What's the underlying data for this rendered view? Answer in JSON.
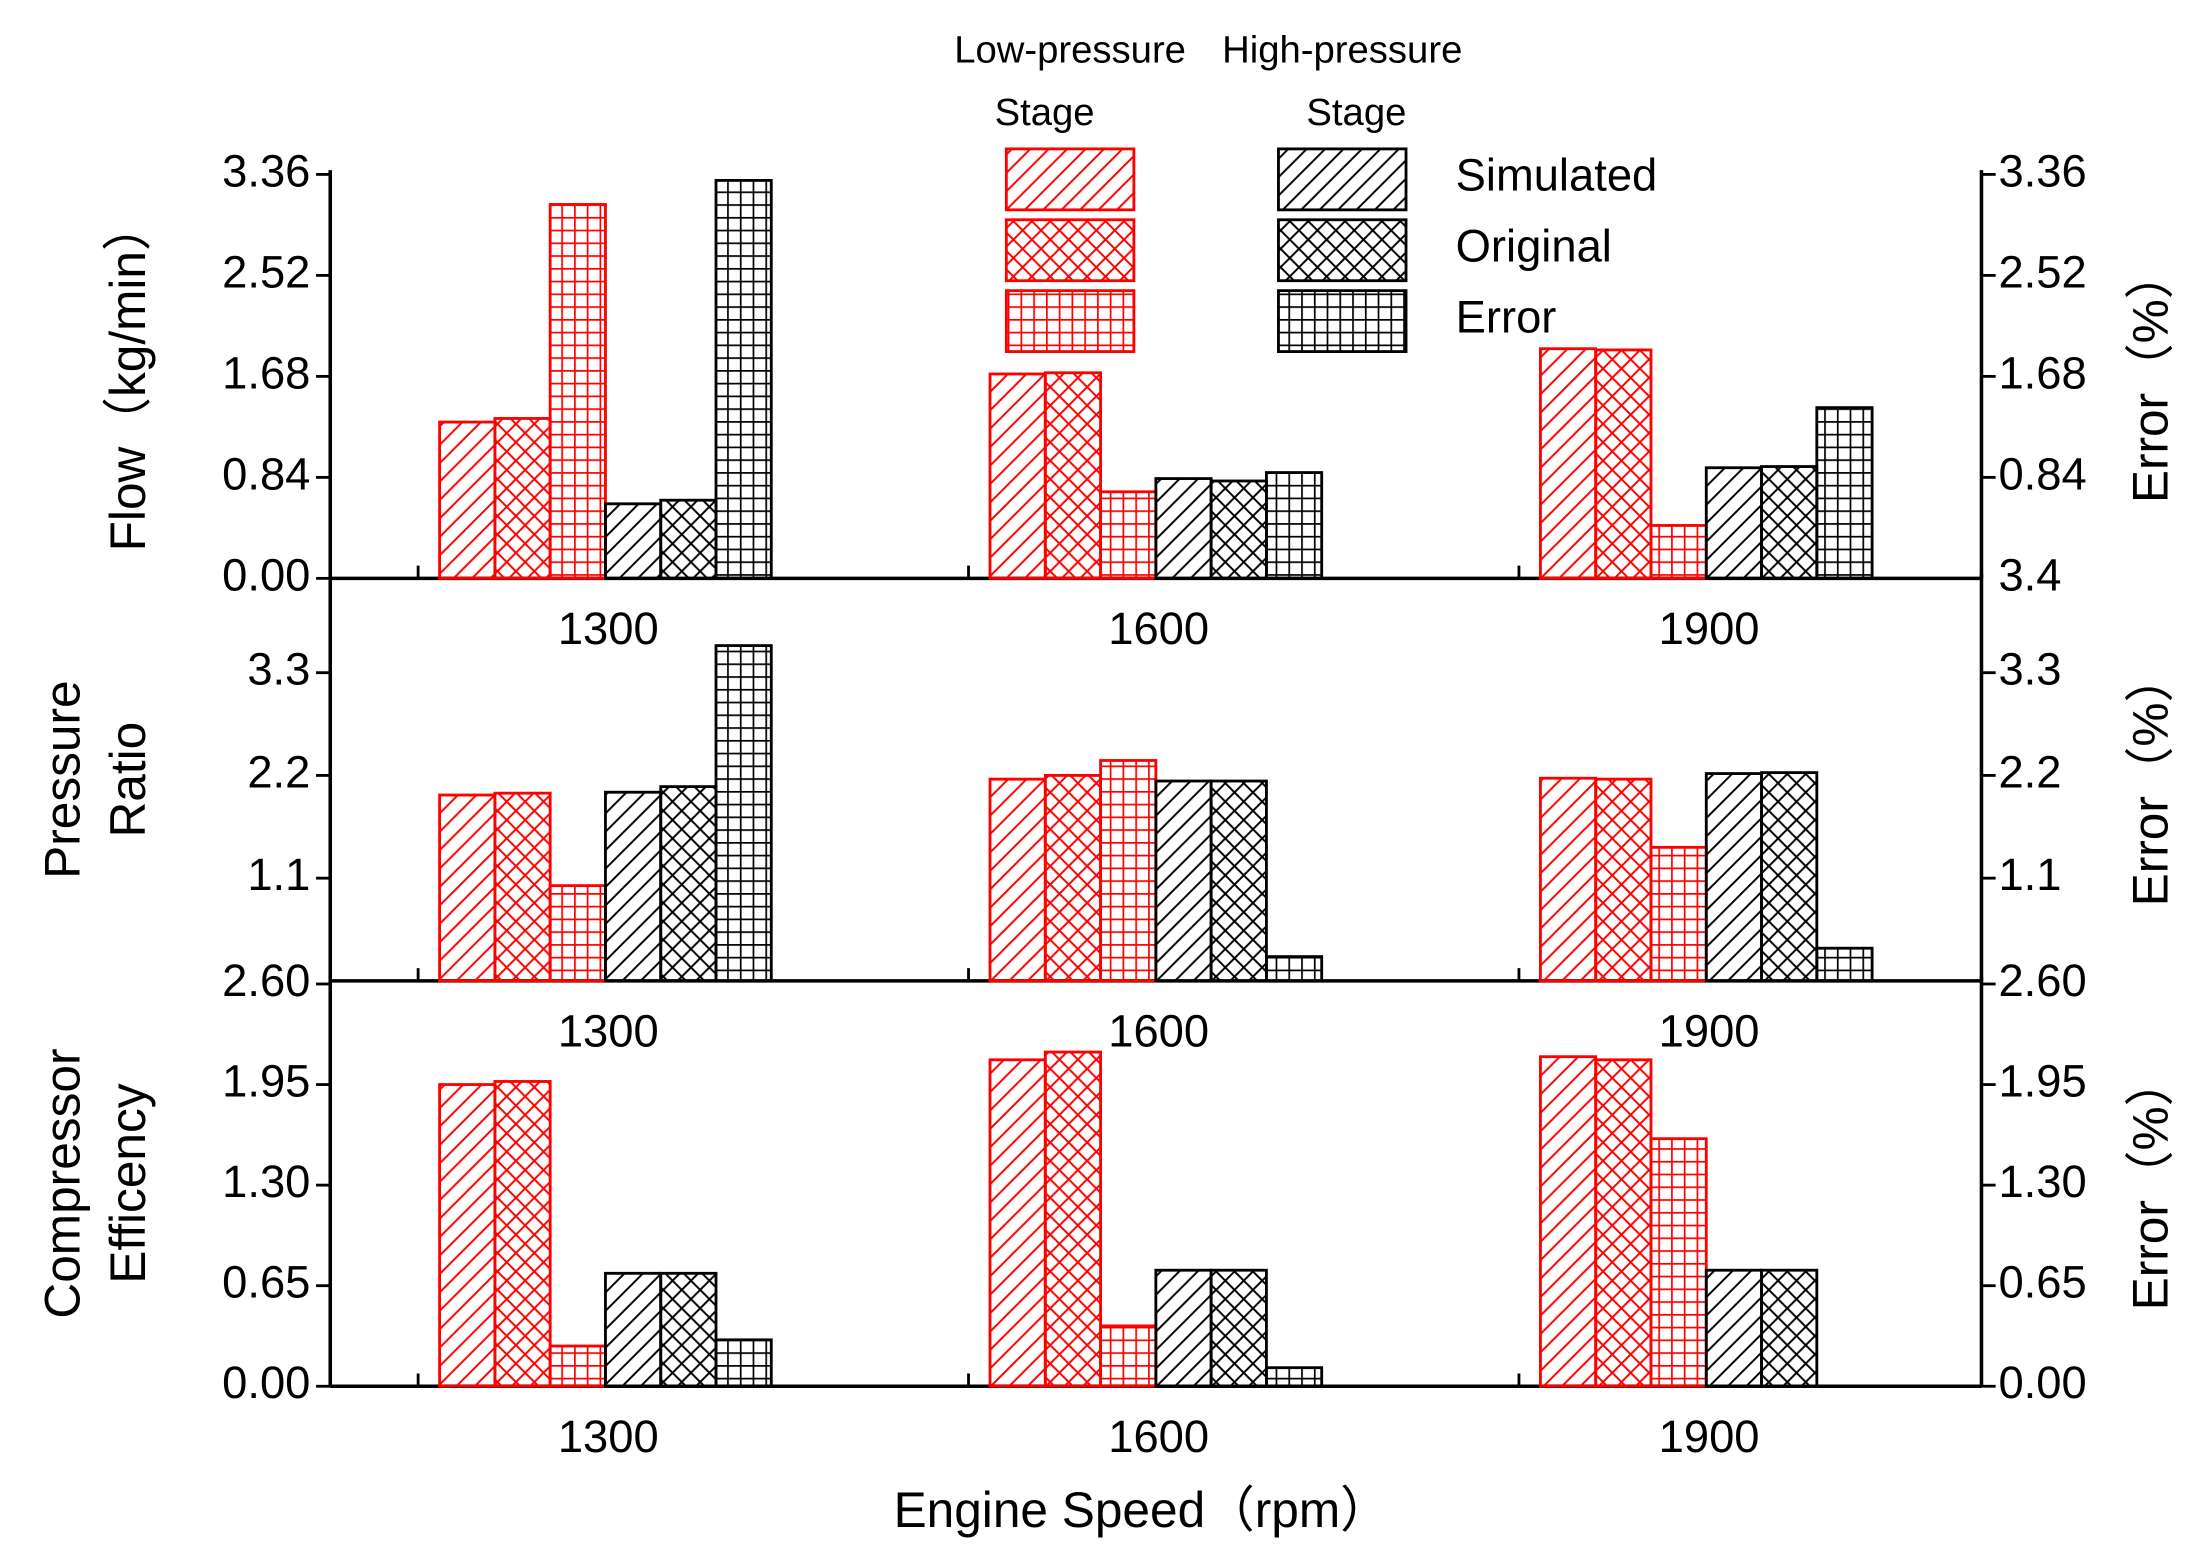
{
  "legend_groups": [
    [
      "Low-pressure",
      "Stage"
    ],
    [
      "High-pressure",
      "Stage"
    ]
  ],
  "chart_data": [
    {
      "type": "bar",
      "ylabel": [
        "Flow（kg/min）"
      ],
      "y2label": "Error（%）",
      "categories": [
        "1300",
        "1600",
        "1900"
      ],
      "ylim": [
        0,
        3.36
      ],
      "yticks": [
        {
          "value": 0,
          "label": "0.00"
        },
        0.84,
        1.68,
        2.52,
        3.36
      ],
      "y2lim": [
        0,
        3.36
      ],
      "y2ticks": [
        0.84,
        1.68,
        2.52,
        3.36
      ],
      "series": [
        {
          "name": "Simulated",
          "group": 0,
          "color": "#ff0000",
          "hatch": "diag",
          "values": [
            1.3,
            1.7,
            1.91
          ]
        },
        {
          "name": "Original",
          "group": 0,
          "color": "#ff0000",
          "hatch": "cross",
          "values": [
            1.33,
            1.71,
            1.9
          ]
        },
        {
          "name": "Error",
          "group": 0,
          "color": "#ff0000",
          "hatch": "grid",
          "axis": "y2",
          "values": [
            3.11,
            0.72,
            0.44
          ]
        },
        {
          "name": "Simulated",
          "group": 1,
          "color": "#000000",
          "hatch": "diag",
          "values": [
            0.62,
            0.83,
            0.92
          ]
        },
        {
          "name": "Original",
          "group": 1,
          "color": "#000000",
          "hatch": "cross",
          "values": [
            0.65,
            0.81,
            0.93
          ]
        },
        {
          "name": "Error",
          "group": 1,
          "color": "#000000",
          "hatch": "grid",
          "axis": "y2",
          "values": [
            3.31,
            0.88,
            1.42
          ]
        }
      ]
    },
    {
      "type": "bar",
      "ylabel": [
        "Pressure",
        "Ratio"
      ],
      "y2label": "Error（%）",
      "categories": [
        "1300",
        "1600",
        "1900"
      ],
      "ylim": [
        0,
        4.31
      ],
      "yticks": [
        1.1,
        2.2,
        3.3
      ],
      "y2lim": [
        0,
        4.31
      ],
      "y2ticks": [
        1.1,
        2.2,
        3.3
      ],
      "annotations": [
        {
          "text": "3.4"
        }
      ],
      "series": [
        {
          "name": "Simulated",
          "group": 0,
          "color": "#ff0000",
          "hatch": "diag",
          "values": [
            1.99,
            2.16,
            2.17
          ]
        },
        {
          "name": "Original",
          "group": 0,
          "color": "#ff0000",
          "hatch": "cross",
          "values": [
            2.01,
            2.2,
            2.16
          ]
        },
        {
          "name": "Error",
          "group": 0,
          "color": "#ff0000",
          "hatch": "grid",
          "axis": "y2",
          "values": [
            1.02,
            2.36,
            1.43
          ]
        },
        {
          "name": "Simulated",
          "group": 1,
          "color": "#000000",
          "hatch": "diag",
          "values": [
            2.02,
            2.14,
            2.22
          ]
        },
        {
          "name": "Original",
          "group": 1,
          "color": "#000000",
          "hatch": "cross",
          "values": [
            2.08,
            2.14,
            2.23
          ]
        },
        {
          "name": "Error",
          "group": 1,
          "color": "#000000",
          "hatch": "grid",
          "axis": "y2",
          "values": [
            3.59,
            0.26,
            0.35
          ]
        }
      ]
    },
    {
      "type": "bar",
      "ylabel": [
        "Compressor",
        "Efficency"
      ],
      "y2label": "Error（%）",
      "xlabel": "Engine Speed（rpm）",
      "categories": [
        "1300",
        "1600",
        "1900"
      ],
      "ylim": [
        0,
        2.62
      ],
      "yticks": [
        {
          "value": 0,
          "label": "0.00"
        },
        0.65,
        {
          "value": 1.3,
          "label": "1.30"
        },
        1.95,
        {
          "value": 2.6,
          "label": "2.60"
        }
      ],
      "y2lim": [
        0,
        2.62
      ],
      "y2ticks": [
        {
          "value": 0,
          "label": "0.00"
        },
        0.65,
        {
          "value": 1.3,
          "label": "1.30"
        },
        1.95,
        {
          "value": 2.6,
          "label": "2.60"
        }
      ],
      "series": [
        {
          "name": "Simulated",
          "group": 0,
          "color": "#ff0000",
          "hatch": "diag",
          "values": [
            1.95,
            2.11,
            2.13
          ]
        },
        {
          "name": "Original",
          "group": 0,
          "color": "#ff0000",
          "hatch": "cross",
          "values": [
            1.97,
            2.16,
            2.11
          ]
        },
        {
          "name": "Error",
          "group": 0,
          "color": "#ff0000",
          "hatch": "grid",
          "axis": "y2",
          "values": [
            0.26,
            0.39,
            1.6
          ]
        },
        {
          "name": "Simulated",
          "group": 1,
          "color": "#000000",
          "hatch": "diag",
          "values": [
            0.73,
            0.75,
            0.75
          ]
        },
        {
          "name": "Original",
          "group": 1,
          "color": "#000000",
          "hatch": "cross",
          "values": [
            0.73,
            0.75,
            0.75
          ]
        },
        {
          "name": "Error",
          "group": 1,
          "color": "#000000",
          "hatch": "grid",
          "axis": "y2",
          "values": [
            0.3,
            0.12,
            null
          ]
        }
      ]
    }
  ]
}
